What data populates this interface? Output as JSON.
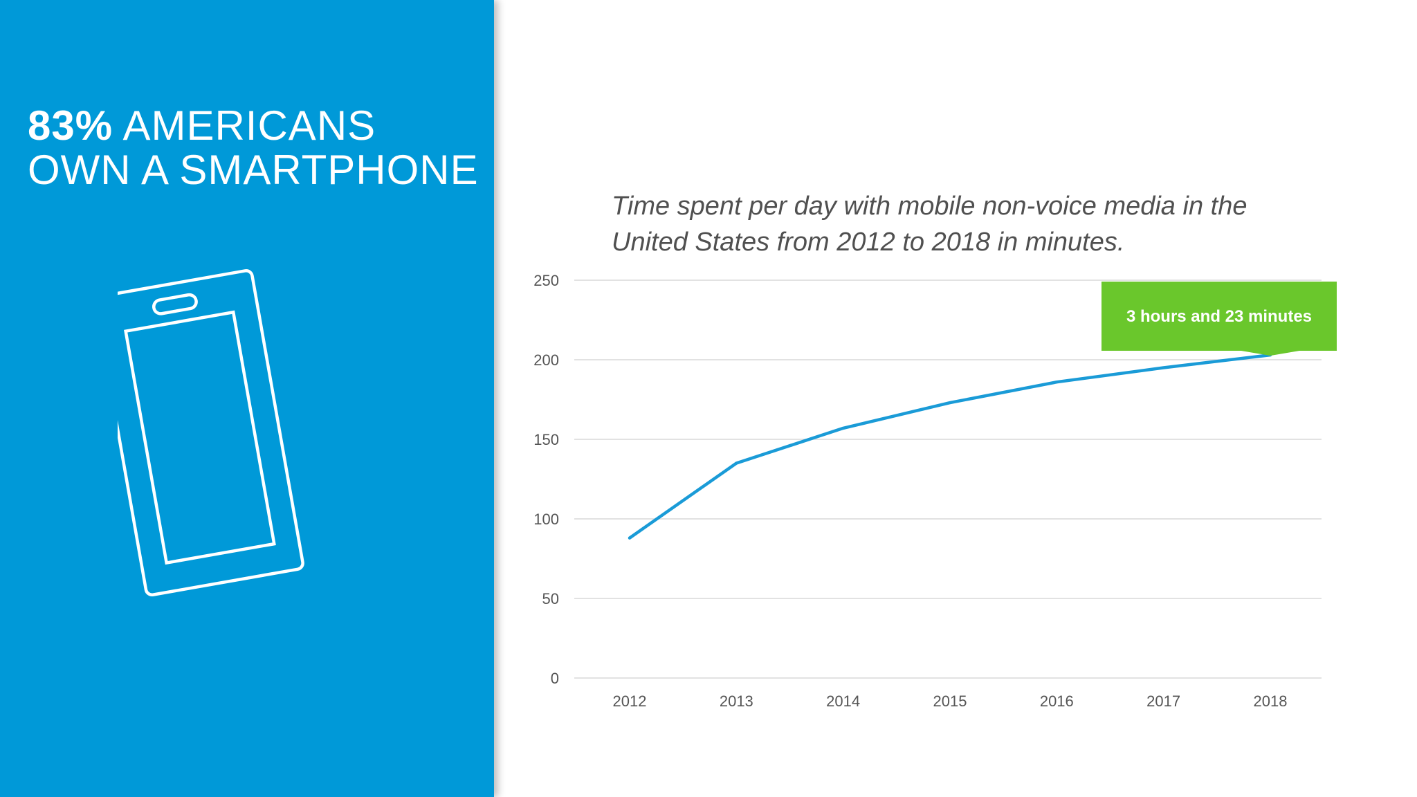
{
  "headline": {
    "highlight": "83%",
    "rest": " AMERICANS",
    "line2": "OWN A SMARTPHONE"
  },
  "icon": "smartphone-icon",
  "colors": {
    "panel": "#0099d8",
    "line": "#1a9bd7",
    "callout": "#6ac72c",
    "grid": "#d9d9d9"
  },
  "chart_data": {
    "type": "line",
    "title": "Time spent per day with mobile non-voice media in the United States from 2012 to 2018 in minutes.",
    "xlabel": "",
    "ylabel": "",
    "categories": [
      "2012",
      "2013",
      "2014",
      "2015",
      "2016",
      "2017",
      "2018"
    ],
    "series": [
      {
        "values": [
          88,
          135,
          157,
          173,
          186,
          195,
          203
        ]
      }
    ],
    "ylim": [
      0,
      250
    ],
    "yticks": [
      0,
      50,
      100,
      150,
      200,
      250
    ],
    "grid": true,
    "legend": "none",
    "annotation": {
      "text": "3 hours and 23 minutes",
      "category": "2018",
      "value": 203
    }
  }
}
